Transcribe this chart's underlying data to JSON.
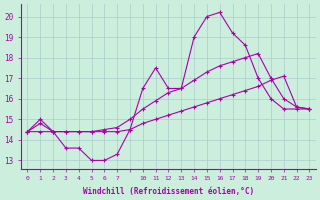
{
  "xlabel": "Windchill (Refroidissement éolien,°C)",
  "bg_color": "#cceedd",
  "grid_color": "#aacccc",
  "line_color": "#aa00aa",
  "yticks": [
    13,
    14,
    15,
    16,
    17,
    18,
    19,
    20
  ],
  "xlabels": [
    "0",
    "1",
    "2",
    "3",
    "4",
    "5",
    "6",
    "7",
    "",
    "10",
    "11",
    "12",
    "13",
    "14",
    "15",
    "16",
    "17",
    "18",
    "19",
    "20",
    "21",
    "22",
    "23"
  ],
  "line1_y": [
    14.4,
    15.0,
    14.4,
    13.6,
    13.6,
    13.0,
    13.0,
    13.3,
    14.5,
    16.5,
    17.5,
    16.5,
    16.5,
    19.0,
    20.0,
    20.2,
    19.2,
    18.6,
    17.0,
    16.0,
    15.5,
    15.5,
    15.5
  ],
  "line2_y": [
    14.4,
    14.8,
    14.4,
    14.4,
    14.4,
    14.4,
    14.5,
    14.6,
    15.0,
    15.5,
    15.9,
    16.3,
    16.5,
    16.9,
    17.3,
    17.6,
    17.8,
    18.0,
    18.2,
    17.0,
    16.0,
    15.6,
    15.5
  ],
  "line3_y": [
    14.4,
    14.4,
    14.4,
    14.4,
    14.4,
    14.4,
    14.4,
    14.4,
    14.5,
    14.8,
    15.0,
    15.2,
    15.4,
    15.6,
    15.8,
    16.0,
    16.2,
    16.4,
    16.6,
    16.9,
    17.1,
    15.6,
    15.5
  ],
  "ylim": [
    12.6,
    20.6
  ],
  "n_points": 23
}
